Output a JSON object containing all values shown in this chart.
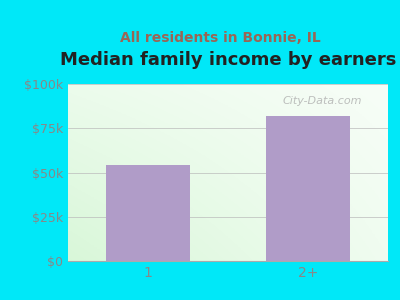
{
  "title": "Median family income by earners",
  "subtitle": "All residents in Bonnie, IL",
  "categories": [
    "1",
    "2+"
  ],
  "values": [
    54000,
    82000
  ],
  "bar_color": "#b09cc8",
  "ylim": [
    0,
    100000
  ],
  "yticks": [
    0,
    25000,
    50000,
    75000,
    100000
  ],
  "ytick_labels": [
    "$0",
    "$25k",
    "$50k",
    "$75k",
    "$100k"
  ],
  "background_outer": "#00e8f8",
  "title_color": "#222222",
  "subtitle_color": "#996655",
  "tick_color": "#888888",
  "watermark": "City-Data.com",
  "title_fontsize": 13,
  "subtitle_fontsize": 10
}
